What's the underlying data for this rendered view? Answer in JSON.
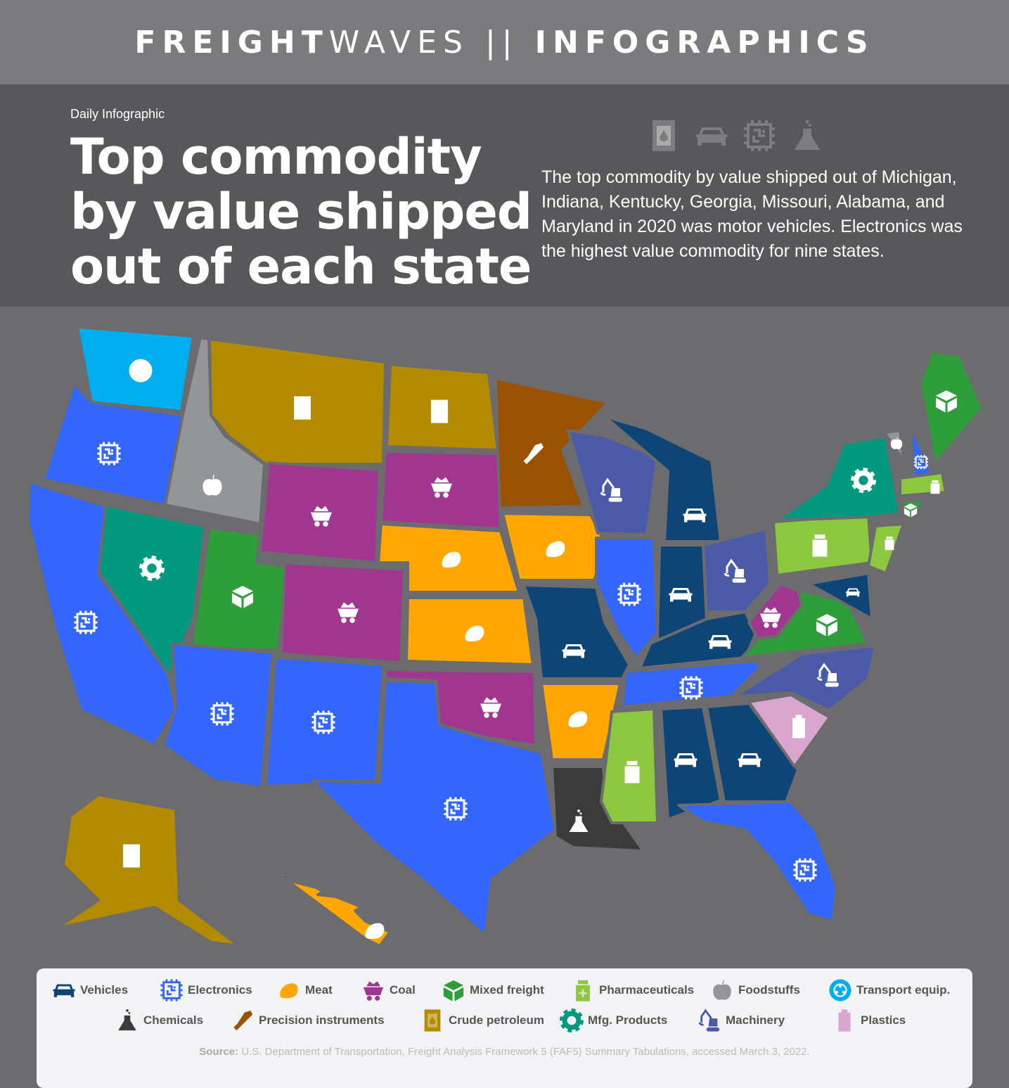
{
  "header": {
    "brand_bold": "FREIGHT",
    "brand_light": "WAVES",
    "separator": "||",
    "section": "INFOGRAPHICS"
  },
  "intro": {
    "kicker": "Daily Infographic",
    "title": "Top commodity by value shipped out of each state",
    "description": "The top commodity by value shipped out of Michigan, Indiana, Kentucky, Georgia, Missouri, Alabama, and Maryland in 2020 was motor vehicles. Electronics was the highest value commodity for nine states.",
    "header_icons": [
      "barrel-icon",
      "car-icon",
      "chip-icon",
      "flask-icon"
    ]
  },
  "legend": [
    {
      "key": "vehicles",
      "label": "Vehicles",
      "color": "#0d4577",
      "icon": "car"
    },
    {
      "key": "electronics",
      "label": "Electronics",
      "color": "#3366ff",
      "icon": "chip"
    },
    {
      "key": "meat",
      "label": "Meat",
      "color": "#ffa600",
      "icon": "meat"
    },
    {
      "key": "coal",
      "label": "Coal",
      "color": "#a0368f",
      "icon": "coal"
    },
    {
      "key": "mixed",
      "label": "Mixed freight",
      "color": "#2e9e3a",
      "icon": "box"
    },
    {
      "key": "pharma",
      "label": "Pharmaceuticals",
      "color": "#8dc63f",
      "icon": "pharma"
    },
    {
      "key": "food",
      "label": "Foodstuffs",
      "color": "#939598",
      "icon": "apple"
    },
    {
      "key": "transport",
      "label": "Transport equip.",
      "color": "#00aeef",
      "icon": "wheel"
    },
    {
      "key": "chemicals",
      "label": "Chemicals",
      "color": "#3b3b3b",
      "icon": "flask"
    },
    {
      "key": "precision",
      "label": "Precision instruments",
      "color": "#9a5200",
      "icon": "caliper"
    },
    {
      "key": "crude",
      "label": "Crude petroleum",
      "color": "#b38b00",
      "icon": "barrel"
    },
    {
      "key": "mfg",
      "label": "Mfg. Products",
      "color": "#009980",
      "icon": "gear"
    },
    {
      "key": "machinery",
      "label": "Machinery",
      "color": "#4a5aa8",
      "icon": "excavator"
    },
    {
      "key": "plastics",
      "label": "Plastics",
      "color": "#d8a6cf",
      "icon": "battery"
    }
  ],
  "states": {
    "WA": "transport",
    "OR": "electronics",
    "ID": "food",
    "MT": "crude",
    "ND": "crude",
    "MN": "precision",
    "SD": "coal",
    "WY": "coal",
    "NE": "meat",
    "IA": "meat",
    "KS": "meat",
    "NV": "mfg",
    "CA": "electronics",
    "UT": "mixed",
    "CO": "coal",
    "AZ": "electronics",
    "NM": "electronics",
    "OK": "coal",
    "TX": "electronics",
    "MO": "vehicles",
    "AR": "meat",
    "LA": "chemicals",
    "WI": "machinery",
    "MI": "vehicles",
    "IL": "electronics",
    "IN": "vehicles",
    "OH": "machinery",
    "KY": "vehicles",
    "TN": "electronics",
    "MS": "pharma",
    "AL": "vehicles",
    "GA": "vehicles",
    "FL": "electronics",
    "SC": "plastics",
    "NC": "machinery",
    "VA": "mixed",
    "WV": "coal",
    "PA": "pharma",
    "NY": "mfg",
    "MD": "vehicles",
    "NJ": "pharma",
    "VT": "food",
    "NH": "electronics",
    "ME": "mixed",
    "MA": "pharma",
    "CT": "mixed",
    "AK": "crude",
    "HI": "meat"
  },
  "source": {
    "label": "Source:",
    "text": "U.S. Department of Transportation, Freight Analysis Framework 5 (FAF5) Summary Tabulations, accessed March 3, 2022."
  }
}
